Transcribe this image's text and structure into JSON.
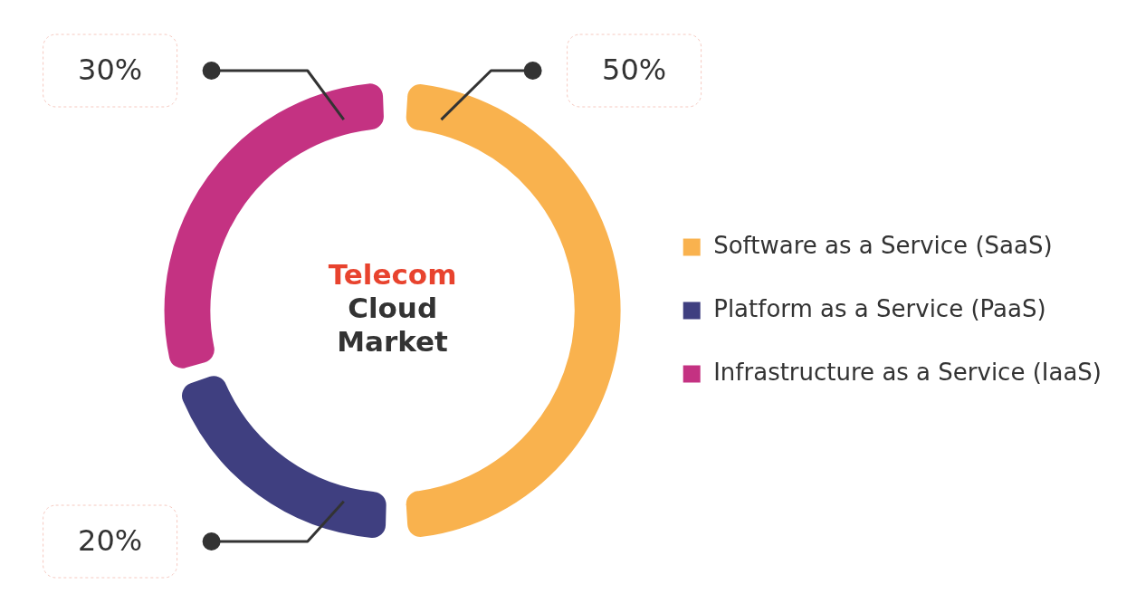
{
  "chart_data": {
    "type": "donut",
    "title": "Telecom Cloud Market",
    "categories": [
      "Software as a Service (SaaS)",
      "Platform as a Service (PaaS)",
      "Infrastructure as a Service (IaaS)"
    ],
    "values": [
      50,
      20,
      30
    ],
    "colors": [
      "#f9b24e",
      "#3f3f80",
      "#c43282"
    ],
    "value_labels": [
      "50%",
      "20%",
      "30%"
    ],
    "legend": "right"
  }
}
